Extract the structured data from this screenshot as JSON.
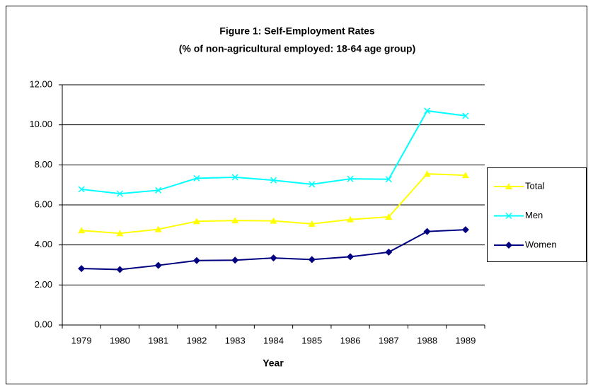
{
  "chart_data": {
    "type": "line",
    "title": "Figure 1: Self-Employment Rates",
    "subtitle": "(% of non-agricultural employed: 18-64 age group)",
    "x_label": "Year",
    "categories": [
      "1979",
      "1980",
      "1981",
      "1982",
      "1983",
      "1984",
      "1985",
      "1986",
      "1987",
      "1988",
      "1989"
    ],
    "series": [
      {
        "name": "Total",
        "color": "#ffff00",
        "marker": "triangle",
        "values": [
          4.72,
          4.58,
          4.78,
          5.18,
          5.22,
          5.2,
          5.05,
          5.27,
          5.4,
          7.55,
          7.48
        ]
      },
      {
        "name": "Men",
        "color": "#00ffff",
        "marker": "x",
        "values": [
          6.78,
          6.56,
          6.73,
          7.33,
          7.38,
          7.23,
          7.03,
          7.3,
          7.28,
          10.7,
          10.45
        ]
      },
      {
        "name": "Women",
        "color": "#000080",
        "marker": "diamond",
        "values": [
          2.82,
          2.77,
          2.98,
          3.22,
          3.24,
          3.35,
          3.27,
          3.41,
          3.64,
          4.67,
          4.76
        ]
      }
    ],
    "ylim": [
      0,
      12
    ],
    "yticks": [
      {
        "value": 0,
        "label": "0.00"
      },
      {
        "value": 2,
        "label": "2.00"
      },
      {
        "value": 4,
        "label": "4.00"
      },
      {
        "value": 6,
        "label": "6.00"
      },
      {
        "value": 8,
        "label": "8.00"
      },
      {
        "value": 10,
        "label": "10.00"
      },
      {
        "value": 12,
        "label": "12.00"
      }
    ],
    "grid": true,
    "legend": "right"
  }
}
